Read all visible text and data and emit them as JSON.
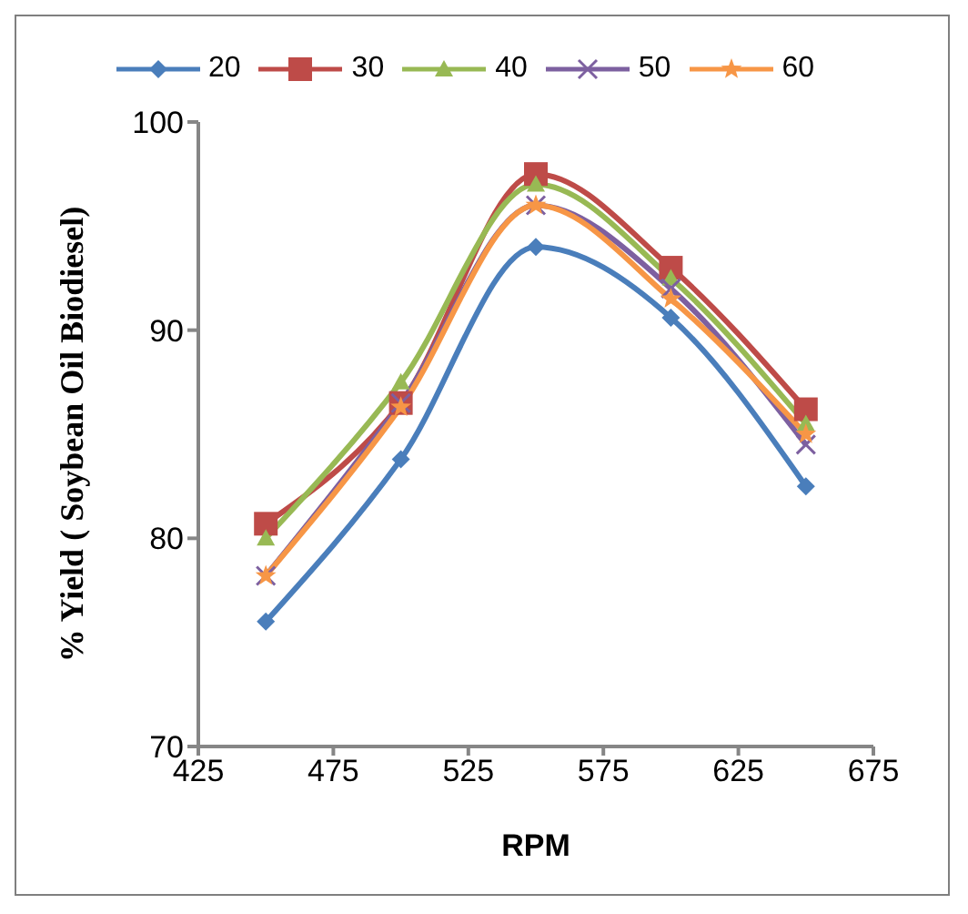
{
  "chart_data": {
    "type": "line",
    "xlabel": "RPM",
    "ylabel": "% Yield ( Soybean Oil Biodiesel)",
    "x": [
      450,
      500,
      550,
      600,
      650
    ],
    "xlim": [
      425,
      675
    ],
    "xticks": [
      425,
      475,
      525,
      575,
      625,
      675
    ],
    "ylim": [
      70,
      100
    ],
    "yticks": [
      70,
      80,
      90,
      100
    ],
    "grid": false,
    "legend": "top",
    "series": [
      {
        "name": "20",
        "color": "#4a7ebb",
        "marker": "diamond",
        "values": [
          76.0,
          83.8,
          94.0,
          90.6,
          82.5
        ]
      },
      {
        "name": "30",
        "color": "#be4b48",
        "marker": "square",
        "values": [
          80.7,
          86.5,
          97.5,
          93.0,
          86.2
        ]
      },
      {
        "name": "40",
        "color": "#98b954",
        "marker": "triangle",
        "values": [
          80.0,
          87.5,
          97.0,
          92.5,
          85.5
        ]
      },
      {
        "name": "50",
        "color": "#7d60a0",
        "marker": "cross",
        "values": [
          78.2,
          86.5,
          96.0,
          92.0,
          84.5
        ]
      },
      {
        "name": "60",
        "color": "#f79646",
        "marker": "star",
        "values": [
          78.2,
          86.3,
          96.0,
          91.5,
          85.0
        ]
      }
    ]
  }
}
